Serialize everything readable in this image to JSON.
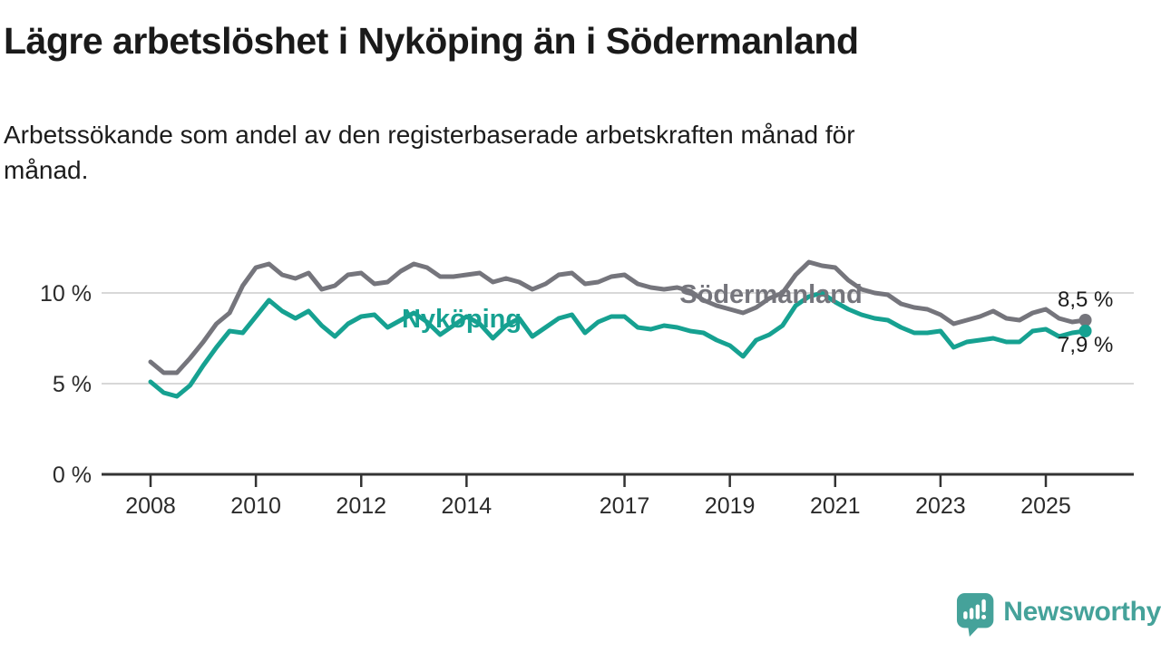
{
  "header": {
    "title": "Lägre arbetslöshet i Nyköping än i Södermanland",
    "subtitle_lines": [
      "Arbetssökande som andel av den registerbaserade arbetskraften månad för",
      "månad."
    ]
  },
  "chart_data": {
    "type": "line",
    "title": "Lägre arbetslöshet i Nyköping än i Södermanland",
    "subtitle": "Arbetssökande som andel av den registerbaserade arbetskraften månad för månad.",
    "unit": "%",
    "grid": "horizontal",
    "legend_position": "inline-labels-on-lines",
    "xlim": [
      2007.1,
      2026.7
    ],
    "ylim": [
      0,
      12.5
    ],
    "x": [
      2008.0,
      2008.25,
      2008.5,
      2008.75,
      2009.0,
      2009.25,
      2009.5,
      2009.75,
      2010.0,
      2010.25,
      2010.5,
      2010.75,
      2011.0,
      2011.25,
      2011.5,
      2011.75,
      2012.0,
      2012.25,
      2012.5,
      2012.75,
      2013.0,
      2013.25,
      2013.5,
      2013.75,
      2014.0,
      2014.25,
      2014.5,
      2014.75,
      2015.0,
      2015.25,
      2015.5,
      2015.75,
      2016.0,
      2016.25,
      2016.5,
      2016.75,
      2017.0,
      2017.25,
      2017.5,
      2017.75,
      2018.0,
      2018.25,
      2018.5,
      2018.75,
      2019.0,
      2019.25,
      2019.5,
      2019.75,
      2020.0,
      2020.25,
      2020.5,
      2020.75,
      2021.0,
      2021.25,
      2021.5,
      2021.75,
      2022.0,
      2022.25,
      2022.5,
      2022.75,
      2023.0,
      2023.25,
      2023.5,
      2023.75,
      2024.0,
      2024.25,
      2024.5,
      2024.75,
      2025.0,
      2025.25,
      2025.5,
      2025.75
    ],
    "series": [
      {
        "name": "Södermanland",
        "color": "#75757c",
        "end_value_label": "8,5 %",
        "values": [
          6.2,
          5.6,
          5.6,
          6.4,
          7.3,
          8.3,
          8.9,
          10.4,
          11.4,
          11.6,
          11.0,
          10.8,
          11.1,
          10.2,
          10.4,
          11.0,
          11.1,
          10.5,
          10.6,
          11.2,
          11.6,
          11.4,
          10.9,
          10.9,
          11.0,
          11.1,
          10.6,
          10.8,
          10.6,
          10.2,
          10.5,
          11.0,
          11.1,
          10.5,
          10.6,
          10.9,
          11.0,
          10.5,
          10.3,
          10.2,
          10.3,
          10.1,
          9.6,
          9.3,
          9.1,
          8.9,
          9.2,
          9.7,
          10.0,
          11.0,
          11.7,
          11.5,
          11.4,
          10.7,
          10.2,
          10.0,
          9.9,
          9.4,
          9.2,
          9.1,
          8.8,
          8.3,
          8.5,
          8.7,
          9.0,
          8.6,
          8.5,
          8.9,
          9.1,
          8.6,
          8.4,
          8.5
        ]
      },
      {
        "name": "Nyköping",
        "color": "#16a191",
        "end_value_label": "7,9 %",
        "values": [
          5.1,
          4.5,
          4.3,
          4.9,
          6.0,
          7.0,
          7.9,
          7.8,
          8.7,
          9.6,
          9.0,
          8.6,
          9.0,
          8.2,
          7.6,
          8.3,
          8.7,
          8.8,
          8.1,
          8.5,
          8.9,
          8.4,
          7.7,
          8.2,
          8.7,
          8.3,
          7.5,
          8.2,
          8.6,
          7.6,
          8.1,
          8.6,
          8.8,
          7.8,
          8.4,
          8.7,
          8.7,
          8.1,
          8.0,
          8.2,
          8.1,
          7.9,
          7.8,
          7.4,
          7.1,
          6.5,
          7.4,
          7.7,
          8.2,
          9.3,
          9.8,
          10.0,
          9.5,
          9.1,
          8.8,
          8.6,
          8.5,
          8.1,
          7.8,
          7.8,
          7.9,
          7.0,
          7.3,
          7.4,
          7.5,
          7.3,
          7.3,
          7.9,
          8.0,
          7.6,
          7.8,
          7.9
        ]
      }
    ],
    "y_ticks": [
      {
        "value": 10,
        "label": "10 %"
      },
      {
        "value": 5,
        "label": "5 %"
      },
      {
        "value": 0,
        "label": "0 %"
      }
    ],
    "x_ticks": [
      {
        "value": 2008,
        "label": "2008"
      },
      {
        "value": 2010,
        "label": "2010"
      },
      {
        "value": 2012,
        "label": "2012"
      },
      {
        "value": 2014,
        "label": "2014"
      },
      {
        "value": 2017,
        "label": "2017"
      },
      {
        "value": 2019,
        "label": "2019"
      },
      {
        "value": 2021,
        "label": "2021"
      },
      {
        "value": 2023,
        "label": "2023"
      },
      {
        "value": 2025,
        "label": "2025"
      }
    ]
  },
  "branding": {
    "logo_text": "Newsworthy",
    "logo_icon": "speech-bubble-with-bar-chart-and-exclamation",
    "logo_color": "#45a29a"
  }
}
